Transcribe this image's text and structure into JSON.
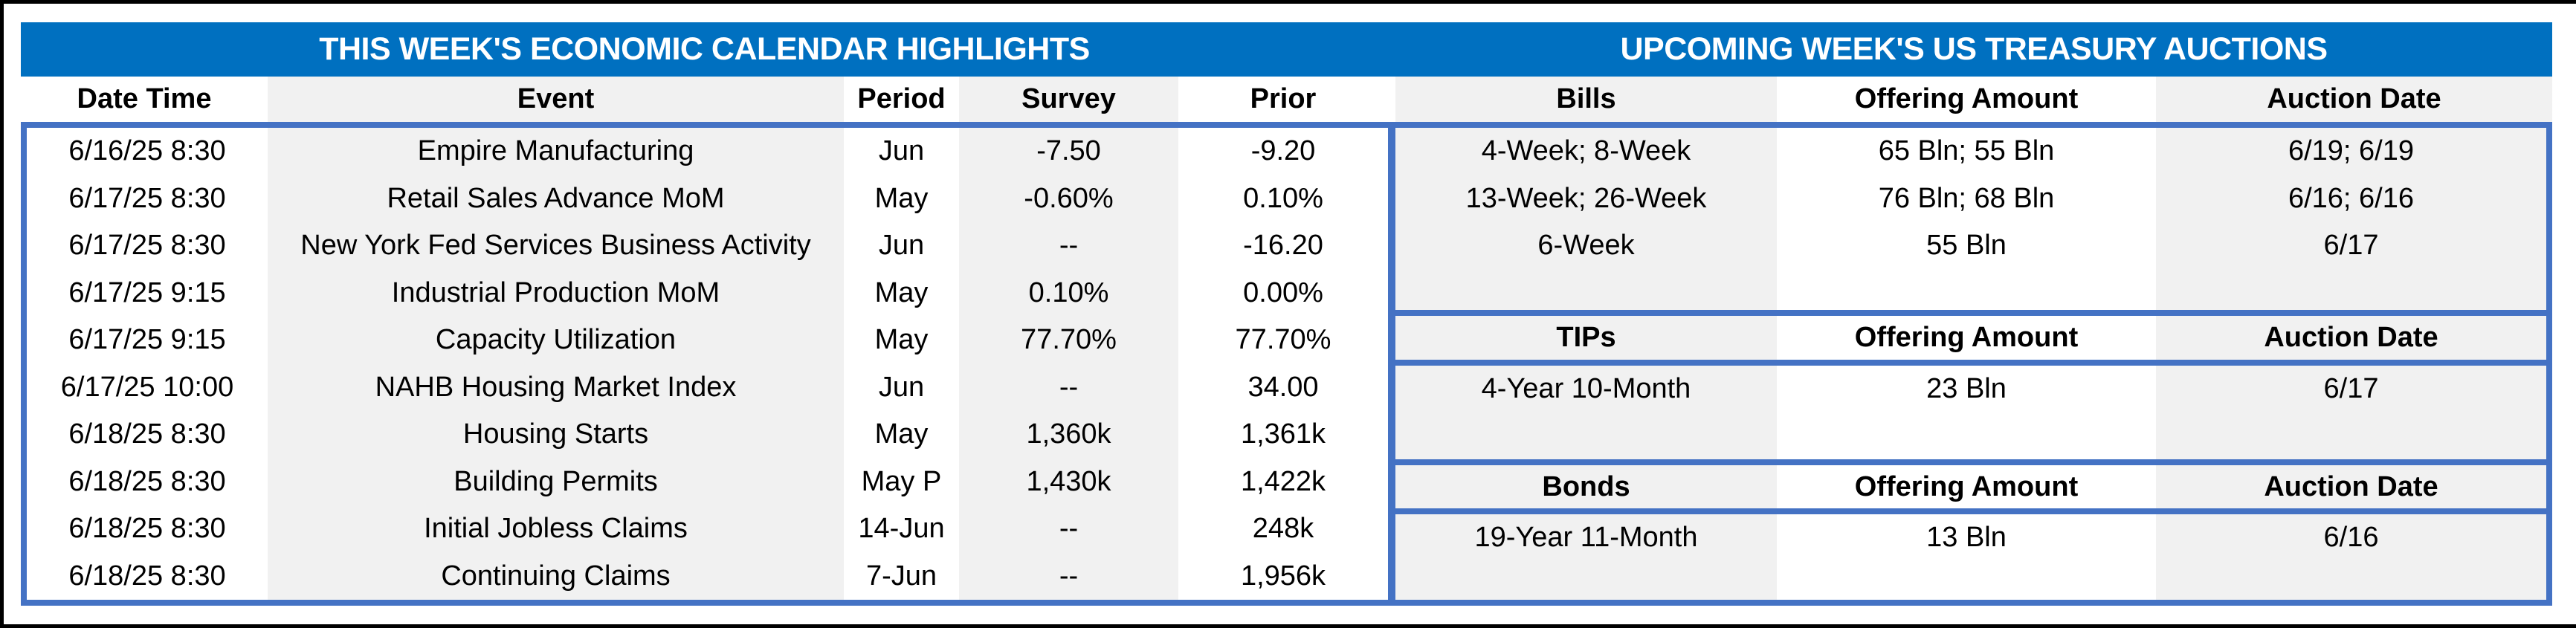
{
  "calendar": {
    "title": "THIS WEEK'S ECONOMIC CALENDAR HIGHLIGHTS",
    "headers": [
      "Date Time",
      "Event",
      "Period",
      "Survey",
      "Prior"
    ],
    "rows": [
      [
        "6/16/25 8:30",
        "Empire Manufacturing",
        "Jun",
        "-7.50",
        "-9.20"
      ],
      [
        "6/17/25 8:30",
        "Retail Sales Advance MoM",
        "May",
        "-0.60%",
        "0.10%"
      ],
      [
        "6/17/25 8:30",
        "New York Fed Services Business Activity",
        "Jun",
        "--",
        "-16.20"
      ],
      [
        "6/17/25 9:15",
        "Industrial Production MoM",
        "May",
        "0.10%",
        "0.00%"
      ],
      [
        "6/17/25 9:15",
        "Capacity Utilization",
        "May",
        "77.70%",
        "77.70%"
      ],
      [
        "6/17/25 10:00",
        "NAHB Housing Market Index",
        "Jun",
        "--",
        "34.00"
      ],
      [
        "6/18/25 8:30",
        "Housing Starts",
        "May",
        "1,360k",
        "1,361k"
      ],
      [
        "6/18/25 8:30",
        "Building Permits",
        "May P",
        "1,430k",
        "1,422k"
      ],
      [
        "6/18/25 8:30",
        "Initial Jobless Claims",
        "14-Jun",
        "--",
        "248k"
      ],
      [
        "6/18/25 8:30",
        "Continuing Claims",
        "7-Jun",
        "--",
        "1,956k"
      ]
    ]
  },
  "auctions": {
    "title": "UPCOMING WEEK'S US TREASURY AUCTIONS",
    "bills": {
      "headers": [
        "Bills",
        "Offering Amount",
        "Auction Date"
      ],
      "rows": [
        [
          "4-Week; 8-Week",
          "65 Bln; 55 Bln",
          "6/19; 6/19"
        ],
        [
          "13-Week; 26-Week",
          "76 Bln; 68 Bln",
          "6/16; 6/16"
        ],
        [
          "6-Week",
          "55 Bln",
          "6/17"
        ]
      ]
    },
    "tips": {
      "headers": [
        "TIPs",
        "Offering Amount",
        "Auction Date"
      ],
      "rows": [
        [
          "4-Year 10-Month",
          "23 Bln",
          "6/17"
        ]
      ]
    },
    "bonds": {
      "headers": [
        "Bonds",
        "Offering Amount",
        "Auction Date"
      ],
      "rows": [
        [
          "19-Year 11-Month",
          "13 Bln",
          "6/16"
        ]
      ]
    }
  },
  "colors": {
    "title_bar_blue": "#0070C0",
    "table_border_blue": "#4472C4",
    "column_stripe_gray": "#F1F1F1",
    "title_text": "#FFFFFF",
    "body_text": "#000000",
    "outer_frame": "#000000"
  }
}
